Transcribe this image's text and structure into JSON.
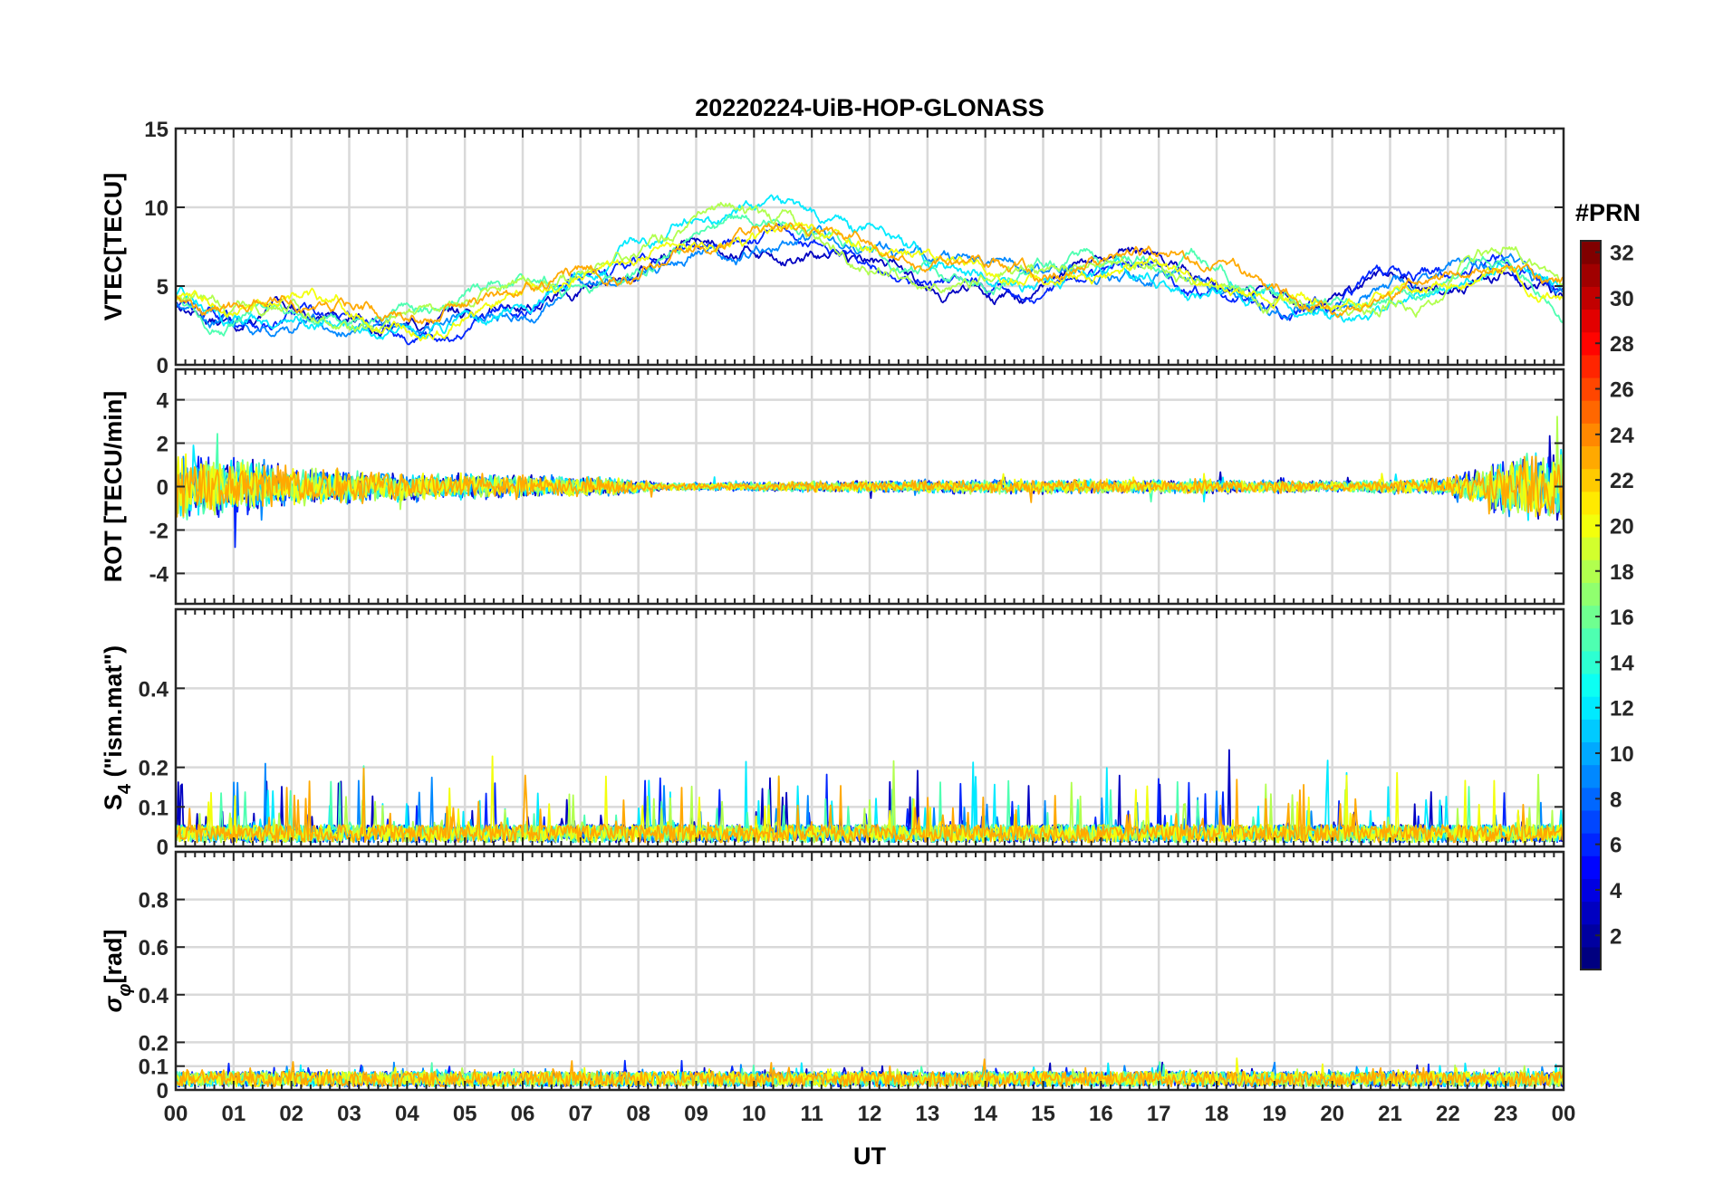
{
  "chart_data": [
    {
      "type": "line",
      "title": "20220224-UiB-HOP-GLONASS",
      "ylabel": "VTEC[TECU]",
      "ylim": [
        0,
        15
      ],
      "yticks": [
        "0",
        "5",
        "10",
        "15"
      ],
      "ytick_values": [
        0,
        5,
        10,
        15
      ],
      "ygrid_values": [
        0,
        5,
        10,
        15
      ],
      "trend": [
        [
          0,
          4.5
        ],
        [
          1,
          3.2
        ],
        [
          2,
          3.8
        ],
        [
          3,
          3.5
        ],
        [
          4,
          3.0
        ],
        [
          5,
          3.5
        ],
        [
          6,
          4.5
        ],
        [
          7,
          5.5
        ],
        [
          8,
          6.5
        ],
        [
          9,
          8.5
        ],
        [
          10,
          8.8
        ],
        [
          11,
          8.0
        ],
        [
          12,
          7.2
        ],
        [
          13,
          6.2
        ],
        [
          14,
          5.8
        ],
        [
          15,
          5.5
        ],
        [
          16,
          6.0
        ],
        [
          17,
          6.2
        ],
        [
          18,
          5.5
        ],
        [
          19,
          4.5
        ],
        [
          20,
          3.8
        ],
        [
          21,
          4.5
        ],
        [
          22,
          5.2
        ],
        [
          23,
          6.5
        ],
        [
          24,
          5.0
        ]
      ],
      "noise": 1.0
    },
    {
      "type": "line",
      "ylabel": "ROT [TECU/min]",
      "ylim": [
        -5.4,
        5.4
      ],
      "yticks": [
        "-4",
        "-2",
        "0",
        "2",
        "4"
      ],
      "ytick_values": [
        -4,
        -2,
        0,
        2,
        4
      ],
      "ygrid_values": [
        -4,
        -2,
        0,
        2,
        4
      ],
      "trend": [
        [
          0,
          0
        ],
        [
          24,
          0
        ]
      ],
      "envelope": [
        [
          0,
          1.5
        ],
        [
          2,
          0.9
        ],
        [
          4,
          0.6
        ],
        [
          6,
          0.5
        ],
        [
          7.5,
          0.4
        ],
        [
          8.5,
          0.15
        ],
        [
          10,
          0.2
        ],
        [
          12,
          0.25
        ],
        [
          14,
          0.3
        ],
        [
          16,
          0.3
        ],
        [
          18,
          0.3
        ],
        [
          20,
          0.25
        ],
        [
          22,
          0.35
        ],
        [
          23,
          1.2
        ],
        [
          24,
          1.6
        ]
      ]
    },
    {
      "type": "line",
      "ylabel_main": "S",
      "ylabel_sub": "4",
      "ylabel_rest": " (\"ism.mat\")",
      "ylim": [
        0,
        0.6
      ],
      "yticks": [
        "0",
        "0.1",
        "0.2",
        "0.4"
      ],
      "ytick_values": [
        0,
        0.1,
        0.2,
        0.4
      ],
      "ygrid_values": [
        0,
        0.1,
        0.2,
        0.4,
        0.6
      ],
      "trend": [
        [
          0,
          0.05
        ],
        [
          24,
          0.05
        ]
      ],
      "positive": true,
      "noise": 0.12
    },
    {
      "type": "line",
      "ylabel_main": "σ",
      "ylabel_sub": "φ",
      "ylabel_rest": "[rad]",
      "ylim": [
        0,
        1
      ],
      "yticks": [
        "0",
        "0.1",
        "0.2",
        "0.4",
        "0.6",
        "0.8"
      ],
      "ytick_values": [
        0,
        0.1,
        0.2,
        0.4,
        0.6,
        0.8
      ],
      "ygrid_values": [
        0,
        0.1,
        0.2,
        0.4,
        0.6,
        0.8,
        1.0
      ],
      "trend": [
        [
          0,
          0.07
        ],
        [
          24,
          0.07
        ]
      ],
      "positive": true,
      "noise": 0.04
    }
  ],
  "x_axis": {
    "label": "UT",
    "range": [
      0,
      24
    ],
    "tick_labels": [
      "00",
      "01",
      "02",
      "03",
      "04",
      "05",
      "06",
      "07",
      "08",
      "09",
      "10",
      "11",
      "12",
      "13",
      "14",
      "15",
      "16",
      "17",
      "18",
      "19",
      "20",
      "21",
      "22",
      "23",
      "00"
    ]
  },
  "colorbar": {
    "label": "#PRN",
    "range": [
      1,
      32
    ],
    "tick_labels": [
      "2",
      "4",
      "6",
      "8",
      "10",
      "12",
      "14",
      "16",
      "18",
      "20",
      "22",
      "24",
      "26",
      "28",
      "30",
      "32"
    ],
    "tick_values": [
      2,
      4,
      6,
      8,
      10,
      12,
      14,
      16,
      18,
      20,
      22,
      24,
      26,
      28,
      30,
      32
    ],
    "colormap": "jet"
  },
  "series_prn_colors": [
    3,
    6,
    9,
    12,
    15,
    18,
    20,
    23
  ]
}
